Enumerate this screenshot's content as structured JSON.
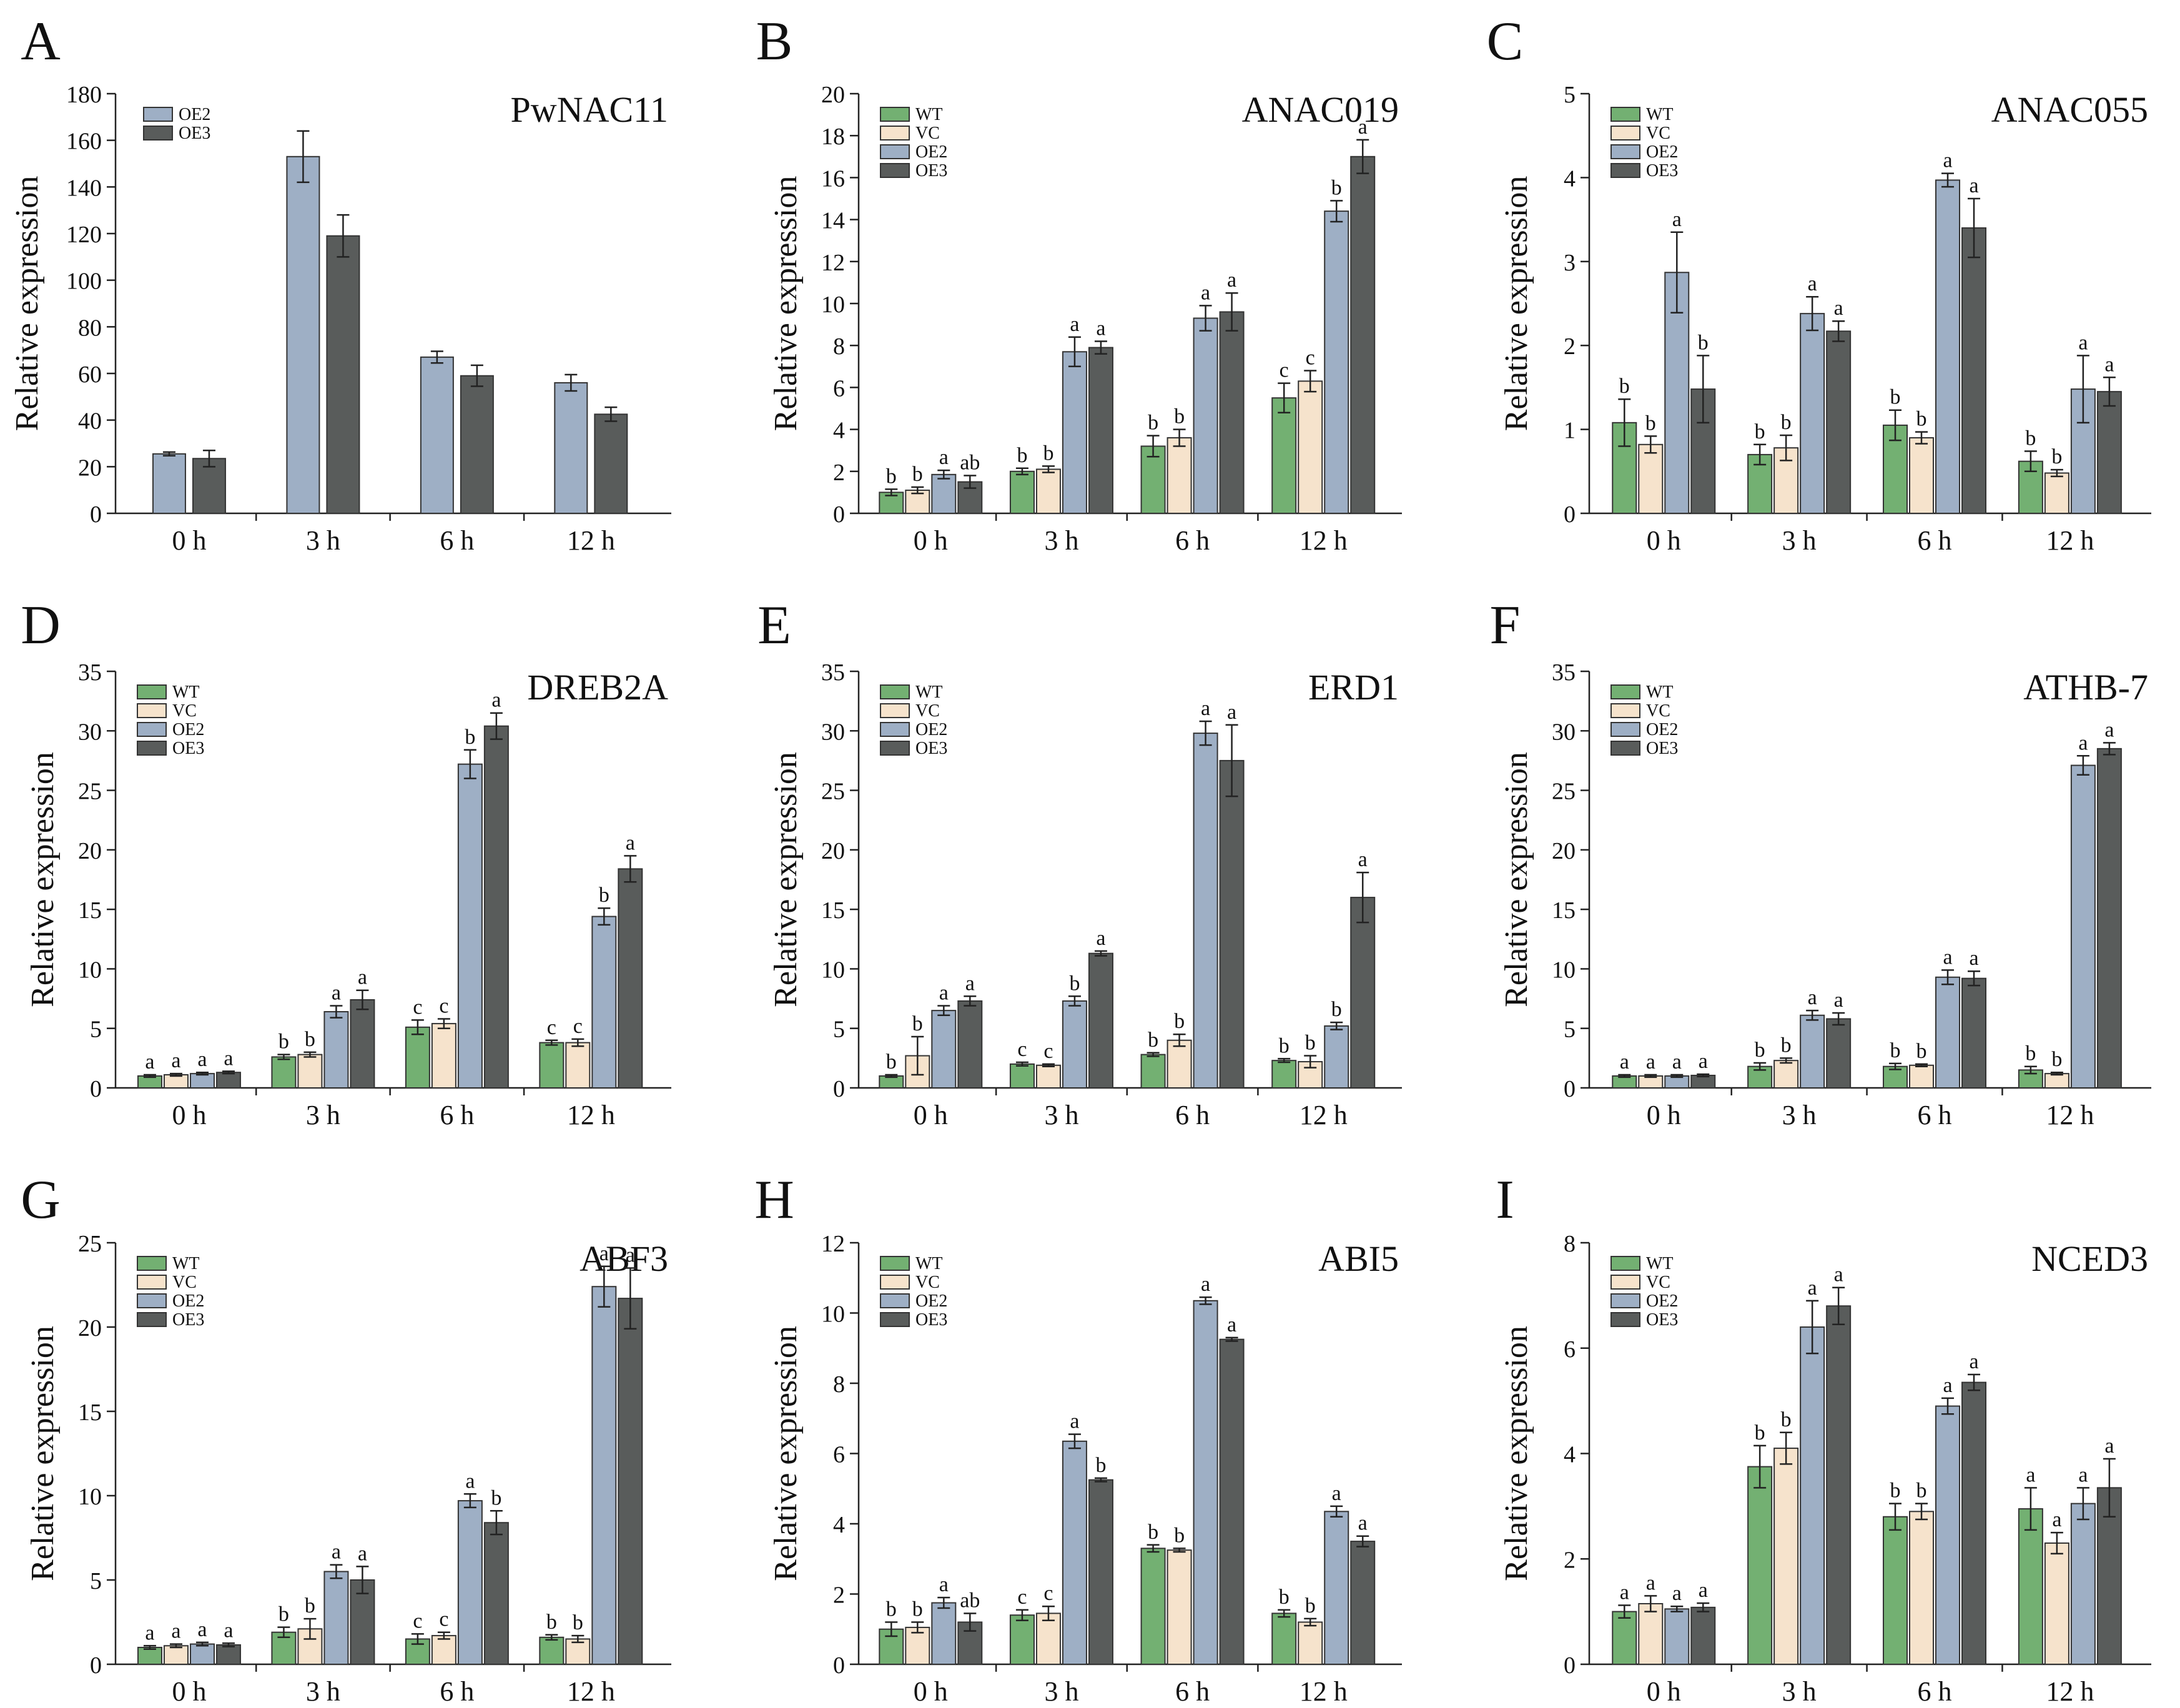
{
  "colors": {
    "WT": "#73b072",
    "VC": "#f6e3cc",
    "OE2": "#9eafc5",
    "OE3": "#595c5b"
  },
  "chart_data": [
    {
      "panel": "A",
      "type": "bar",
      "gene": "PwNAC11",
      "categories": [
        "0 h",
        "3 h",
        "6 h",
        "12 h"
      ],
      "ylabel": "Relative expression",
      "ylim": [
        0,
        180
      ],
      "yticks": [
        0,
        20,
        40,
        60,
        80,
        100,
        120,
        140,
        160,
        180
      ],
      "legend": [
        "OE2",
        "OE3"
      ],
      "grid": false,
      "legend_position": "top-left",
      "series": [
        {
          "name": "OE2",
          "values": [
            25.5,
            153,
            67,
            56
          ],
          "errors": [
            0.8,
            11,
            2.5,
            3.5
          ],
          "letters": [
            "",
            "",
            "",
            ""
          ]
        },
        {
          "name": "OE3",
          "values": [
            23.5,
            119,
            59,
            42.5
          ],
          "errors": [
            3.5,
            9,
            4.5,
            3
          ],
          "letters": [
            "",
            "",
            "",
            ""
          ]
        }
      ]
    },
    {
      "panel": "B",
      "type": "bar",
      "gene": "ANAC019",
      "categories": [
        "0 h",
        "3 h",
        "6 h",
        "12 h"
      ],
      "ylabel": "Relative expression",
      "ylim": [
        0,
        20
      ],
      "yticks": [
        0,
        2,
        4,
        6,
        8,
        10,
        12,
        14,
        16,
        18,
        20
      ],
      "legend": [
        "WT",
        "VC",
        "OE2",
        "OE3"
      ],
      "grid": false,
      "legend_position": "top-left",
      "series": [
        {
          "name": "WT",
          "values": [
            1.0,
            2.0,
            3.2,
            5.5
          ],
          "errors": [
            0.15,
            0.15,
            0.5,
            0.7
          ],
          "letters": [
            "b",
            "b",
            "b",
            "c"
          ]
        },
        {
          "name": "VC",
          "values": [
            1.1,
            2.1,
            3.6,
            6.3
          ],
          "errors": [
            0.15,
            0.15,
            0.4,
            0.5
          ],
          "letters": [
            "b",
            "b",
            "b",
            "c"
          ]
        },
        {
          "name": "OE2",
          "values": [
            1.85,
            7.7,
            9.3,
            14.4
          ],
          "errors": [
            0.2,
            0.7,
            0.6,
            0.5
          ],
          "letters": [
            "a",
            "a",
            "a",
            "b"
          ]
        },
        {
          "name": "OE3",
          "values": [
            1.5,
            7.9,
            9.6,
            17.0
          ],
          "errors": [
            0.3,
            0.3,
            0.9,
            0.8
          ],
          "letters": [
            "ab",
            "a",
            "a",
            "a"
          ]
        }
      ]
    },
    {
      "panel": "C",
      "type": "bar",
      "gene": "ANAC055",
      "categories": [
        "0 h",
        "3 h",
        "6 h",
        "12 h"
      ],
      "ylabel": "Relative expression",
      "ylim": [
        0,
        5
      ],
      "yticks": [
        0,
        1,
        2,
        3,
        4,
        5
      ],
      "legend": [
        "WT",
        "VC",
        "OE2",
        "OE3"
      ],
      "grid": false,
      "legend_position": "top-left",
      "series": [
        {
          "name": "WT",
          "values": [
            1.08,
            0.7,
            1.05,
            0.62
          ],
          "errors": [
            0.28,
            0.12,
            0.18,
            0.12
          ],
          "letters": [
            "b",
            "b",
            "b",
            "b"
          ]
        },
        {
          "name": "VC",
          "values": [
            0.82,
            0.78,
            0.9,
            0.48
          ],
          "errors": [
            0.1,
            0.15,
            0.07,
            0.04
          ],
          "letters": [
            "b",
            "b",
            "b",
            "b"
          ]
        },
        {
          "name": "OE2",
          "values": [
            2.87,
            2.38,
            3.97,
            1.48
          ],
          "errors": [
            0.48,
            0.2,
            0.08,
            0.4
          ],
          "letters": [
            "a",
            "a",
            "a",
            "a"
          ]
        },
        {
          "name": "OE3",
          "values": [
            1.48,
            2.17,
            3.4,
            1.45
          ],
          "errors": [
            0.4,
            0.12,
            0.35,
            0.17
          ],
          "letters": [
            "b",
            "a",
            "a",
            "a"
          ]
        }
      ]
    },
    {
      "panel": "D",
      "type": "bar",
      "gene": "DREB2A",
      "categories": [
        "0 h",
        "3 h",
        "6 h",
        "12 h"
      ],
      "ylabel": "Relative expression",
      "ylim": [
        0,
        35
      ],
      "yticks": [
        0,
        5,
        10,
        15,
        20,
        25,
        30,
        35
      ],
      "legend": [
        "WT",
        "VC",
        "OE2",
        "OE3"
      ],
      "grid": false,
      "legend_position": "top-left",
      "series": [
        {
          "name": "WT",
          "values": [
            1.0,
            2.6,
            5.1,
            3.8
          ],
          "errors": [
            0.1,
            0.2,
            0.6,
            0.2
          ],
          "letters": [
            "a",
            "b",
            "c",
            "c"
          ]
        },
        {
          "name": "VC",
          "values": [
            1.1,
            2.8,
            5.4,
            3.8
          ],
          "errors": [
            0.1,
            0.2,
            0.4,
            0.3
          ],
          "letters": [
            "a",
            "b",
            "c",
            "c"
          ]
        },
        {
          "name": "OE2",
          "values": [
            1.2,
            6.4,
            27.2,
            14.4
          ],
          "errors": [
            0.1,
            0.5,
            1.2,
            0.7
          ],
          "letters": [
            "a",
            "a",
            "b",
            "b"
          ]
        },
        {
          "name": "OE3",
          "values": [
            1.3,
            7.4,
            30.4,
            18.4
          ],
          "errors": [
            0.1,
            0.8,
            1.1,
            1.1
          ],
          "letters": [
            "a",
            "a",
            "a",
            "a"
          ]
        }
      ]
    },
    {
      "panel": "E",
      "type": "bar",
      "gene": "ERD1",
      "categories": [
        "0 h",
        "3 h",
        "6 h",
        "12 h"
      ],
      "ylabel": "Relative expression",
      "ylim": [
        0,
        35
      ],
      "yticks": [
        0,
        5,
        10,
        15,
        20,
        25,
        30,
        35
      ],
      "legend": [
        "WT",
        "VC",
        "OE2",
        "OE3"
      ],
      "grid": false,
      "legend_position": "top-left",
      "series": [
        {
          "name": "WT",
          "values": [
            1.0,
            2.0,
            2.8,
            2.3
          ],
          "errors": [
            0.1,
            0.15,
            0.15,
            0.15
          ],
          "letters": [
            "b",
            "c",
            "b",
            "b"
          ]
        },
        {
          "name": "VC",
          "values": [
            2.7,
            1.9,
            4.0,
            2.2
          ],
          "errors": [
            1.6,
            0.1,
            0.5,
            0.5
          ],
          "letters": [
            "b",
            "c",
            "b",
            "b"
          ]
        },
        {
          "name": "OE2",
          "values": [
            6.5,
            7.3,
            29.8,
            5.2
          ],
          "errors": [
            0.4,
            0.4,
            1.0,
            0.3
          ],
          "letters": [
            "a",
            "b",
            "a",
            "b"
          ]
        },
        {
          "name": "OE3",
          "values": [
            7.3,
            11.3,
            27.5,
            16.0
          ],
          "errors": [
            0.4,
            0.2,
            3.0,
            2.1
          ],
          "letters": [
            "a",
            "a",
            "a",
            "a"
          ]
        }
      ]
    },
    {
      "panel": "F",
      "type": "bar",
      "gene": "ATHB-7",
      "categories": [
        "0 h",
        "3 h",
        "6 h",
        "12 h"
      ],
      "ylabel": "Relative expression",
      "ylim": [
        0,
        35
      ],
      "yticks": [
        0,
        5,
        10,
        15,
        20,
        25,
        30,
        35
      ],
      "legend": [
        "WT",
        "VC",
        "OE2",
        "OE3"
      ],
      "grid": false,
      "legend_position": "top-left",
      "series": [
        {
          "name": "WT",
          "values": [
            1.0,
            1.8,
            1.8,
            1.5
          ],
          "errors": [
            0.1,
            0.3,
            0.25,
            0.3
          ],
          "letters": [
            "a",
            "b",
            "b",
            "b"
          ]
        },
        {
          "name": "VC",
          "values": [
            1.0,
            2.3,
            1.9,
            1.2
          ],
          "errors": [
            0.1,
            0.2,
            0.1,
            0.1
          ],
          "letters": [
            "a",
            "b",
            "b",
            "b"
          ]
        },
        {
          "name": "OE2",
          "values": [
            1.0,
            6.1,
            9.3,
            27.1
          ],
          "errors": [
            0.1,
            0.4,
            0.6,
            0.8
          ],
          "letters": [
            "a",
            "a",
            "a",
            "a"
          ]
        },
        {
          "name": "OE3",
          "values": [
            1.05,
            5.8,
            9.2,
            28.5
          ],
          "errors": [
            0.1,
            0.5,
            0.6,
            0.5
          ],
          "letters": [
            "a",
            "a",
            "a",
            "a"
          ]
        }
      ]
    },
    {
      "panel": "G",
      "type": "bar",
      "gene": "ABF3",
      "categories": [
        "0 h",
        "3 h",
        "6 h",
        "12 h"
      ],
      "ylabel": "Relative expression",
      "ylim": [
        0,
        25
      ],
      "yticks": [
        0,
        5,
        10,
        15,
        20,
        25
      ],
      "legend": [
        "WT",
        "VC",
        "OE2",
        "OE3"
      ],
      "grid": false,
      "legend_position": "top-left",
      "series": [
        {
          "name": "WT",
          "values": [
            1.0,
            1.9,
            1.5,
            1.6
          ],
          "errors": [
            0.1,
            0.3,
            0.3,
            0.15
          ],
          "letters": [
            "a",
            "b",
            "c",
            "b"
          ]
        },
        {
          "name": "VC",
          "values": [
            1.1,
            2.1,
            1.7,
            1.5
          ],
          "errors": [
            0.1,
            0.6,
            0.2,
            0.2
          ],
          "letters": [
            "a",
            "b",
            "c",
            "b"
          ]
        },
        {
          "name": "OE2",
          "values": [
            1.2,
            5.5,
            9.7,
            22.4
          ],
          "errors": [
            0.1,
            0.4,
            0.4,
            1.2
          ],
          "letters": [
            "a",
            "a",
            "a",
            "a"
          ]
        },
        {
          "name": "OE3",
          "values": [
            1.15,
            5.0,
            8.4,
            21.7
          ],
          "errors": [
            0.1,
            0.8,
            0.7,
            1.8
          ],
          "letters": [
            "a",
            "a",
            "b",
            "a"
          ]
        }
      ]
    },
    {
      "panel": "H",
      "type": "bar",
      "gene": "ABI5",
      "categories": [
        "0 h",
        "3 h",
        "6 h",
        "12 h"
      ],
      "ylabel": "Relative expression",
      "ylim": [
        0,
        12
      ],
      "yticks": [
        0,
        2,
        4,
        6,
        8,
        10,
        12
      ],
      "legend": [
        "WT",
        "VC",
        "OE2",
        "OE3"
      ],
      "grid": false,
      "legend_position": "top-left",
      "series": [
        {
          "name": "WT",
          "values": [
            1.0,
            1.4,
            3.3,
            1.45
          ],
          "errors": [
            0.2,
            0.15,
            0.1,
            0.1
          ],
          "letters": [
            "b",
            "c",
            "b",
            "b"
          ]
        },
        {
          "name": "VC",
          "values": [
            1.05,
            1.45,
            3.25,
            1.2
          ],
          "errors": [
            0.15,
            0.2,
            0.05,
            0.1
          ],
          "letters": [
            "b",
            "c",
            "b",
            "b"
          ]
        },
        {
          "name": "OE2",
          "values": [
            1.75,
            6.35,
            10.35,
            4.35
          ],
          "errors": [
            0.15,
            0.2,
            0.1,
            0.15
          ],
          "letters": [
            "a",
            "a",
            "a",
            "a"
          ]
        },
        {
          "name": "OE3",
          "values": [
            1.2,
            5.25,
            9.25,
            3.5
          ],
          "errors": [
            0.25,
            0.05,
            0.05,
            0.15
          ],
          "letters": [
            "ab",
            "b",
            "a",
            "a"
          ]
        }
      ]
    },
    {
      "panel": "I",
      "type": "bar",
      "gene": "NCED3",
      "categories": [
        "0 h",
        "3 h",
        "6 h",
        "12 h"
      ],
      "ylabel": "Relative expression",
      "ylim": [
        0,
        8
      ],
      "yticks": [
        0,
        2,
        4,
        6,
        8
      ],
      "legend": [
        "WT",
        "VC",
        "OE2",
        "OE3"
      ],
      "grid": false,
      "legend_position": "top-left",
      "series": [
        {
          "name": "WT",
          "values": [
            1.0,
            3.75,
            2.8,
            2.95
          ],
          "errors": [
            0.12,
            0.4,
            0.25,
            0.4
          ],
          "letters": [
            "a",
            "b",
            "b",
            "a"
          ]
        },
        {
          "name": "VC",
          "values": [
            1.15,
            4.1,
            2.9,
            2.3
          ],
          "errors": [
            0.15,
            0.3,
            0.15,
            0.2
          ],
          "letters": [
            "a",
            "b",
            "b",
            "a"
          ]
        },
        {
          "name": "OE2",
          "values": [
            1.05,
            6.4,
            4.9,
            3.05
          ],
          "errors": [
            0.05,
            0.5,
            0.15,
            0.3
          ],
          "letters": [
            "a",
            "a",
            "a",
            "a"
          ]
        },
        {
          "name": "OE3",
          "values": [
            1.08,
            6.8,
            5.35,
            3.35
          ],
          "errors": [
            0.08,
            0.35,
            0.15,
            0.55
          ],
          "letters": [
            "a",
            "a",
            "a",
            "a"
          ]
        }
      ]
    }
  ]
}
